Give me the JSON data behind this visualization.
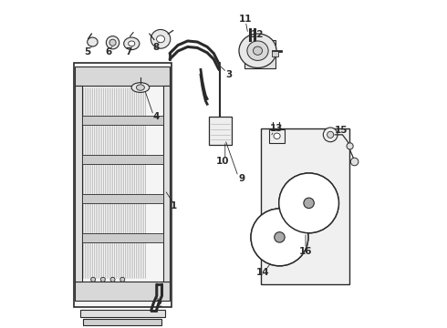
{
  "bg_color": "#ffffff",
  "line_color": "#2a2a2a",
  "figsize": [
    4.9,
    3.6
  ],
  "dpi": 100,
  "font_size_labels": 7.5,
  "lw": 0.8
}
